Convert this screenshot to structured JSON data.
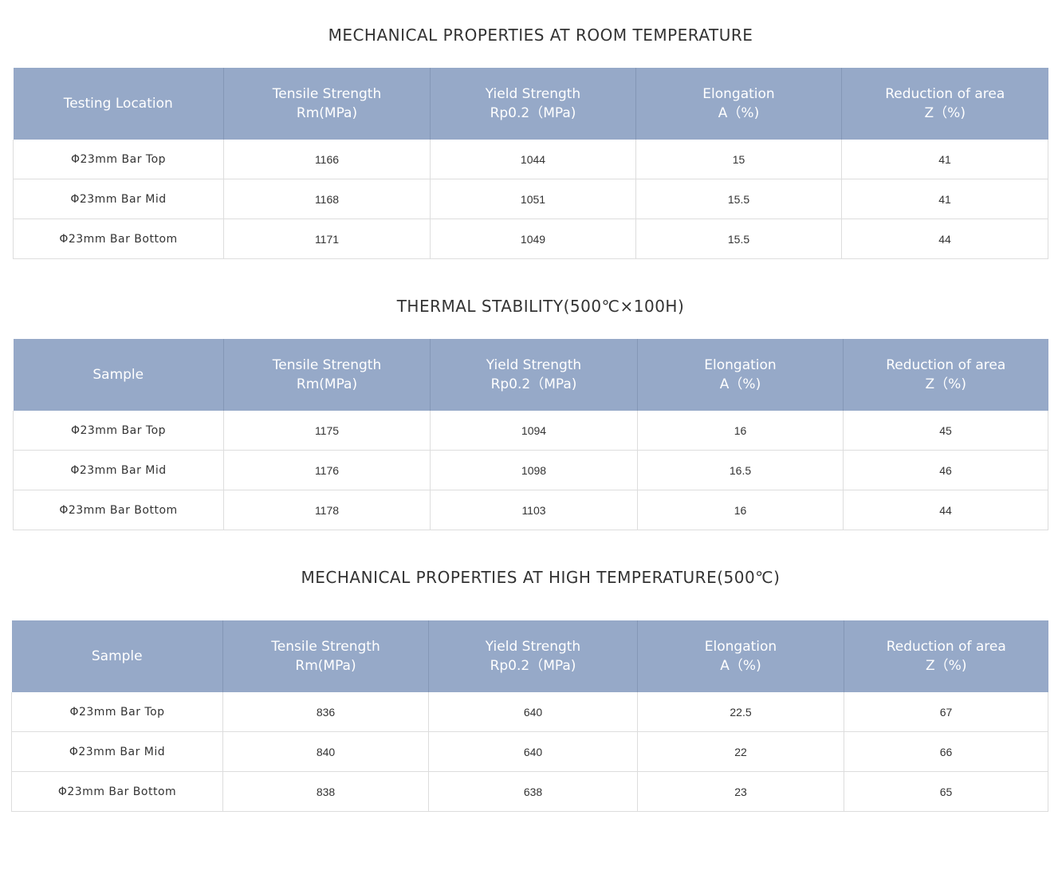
{
  "tables": [
    {
      "title": "MECHANICAL PROPERTIES AT ROOM TEMPERATURE",
      "headers": [
        [
          "Testing Location",
          ""
        ],
        [
          "Tensile Strength",
          "Rm(MPa)"
        ],
        [
          "Yield Strength",
          "Rp0.2（MPa)"
        ],
        [
          "Elongation",
          "A（%)"
        ],
        [
          "Reduction of area",
          "Z（%)"
        ]
      ],
      "rows": [
        [
          "Φ23mm Bar Top",
          "1166",
          "1044",
          "15",
          "41"
        ],
        [
          "Φ23mm Bar Mid",
          "1168",
          "1051",
          "15.5",
          "41"
        ],
        [
          "Φ23mm Bar Bottom",
          "1171",
          "1049",
          "15.5",
          "44"
        ]
      ]
    },
    {
      "title": "THERMAL STABILITY(500℃×100H)",
      "headers": [
        [
          "Sample",
          ""
        ],
        [
          "Tensile Strength",
          "Rm(MPa)"
        ],
        [
          "Yield Strength",
          "Rp0.2（MPa)"
        ],
        [
          "Elongation",
          "A（%)"
        ],
        [
          "Reduction of area",
          "Z（%)"
        ]
      ],
      "rows": [
        [
          "Φ23mm Bar Top",
          "1175",
          "1094",
          "16",
          "45"
        ],
        [
          "Φ23mm Bar Mid",
          "1176",
          "1098",
          "16.5",
          "46"
        ],
        [
          "Φ23mm Bar Bottom",
          "1178",
          "1103",
          "16",
          "44"
        ]
      ]
    },
    {
      "title": "MECHANICAL PROPERTIES AT HIGH TEMPERATURE(500℃)",
      "headers": [
        [
          "Sample",
          ""
        ],
        [
          "Tensile Strength",
          "Rm(MPa)"
        ],
        [
          "Yield Strength",
          "Rp0.2（MPa)"
        ],
        [
          "Elongation",
          "A（%)"
        ],
        [
          "Reduction of area",
          "Z（%)"
        ]
      ],
      "rows": [
        [
          "Φ23mm Bar Top",
          "836",
          "640",
          "22.5",
          "67"
        ],
        [
          "Φ23mm Bar Mid",
          "840",
          "640",
          "22",
          "66"
        ],
        [
          "Φ23mm Bar Bottom",
          "838",
          "638",
          "23",
          "65"
        ]
      ]
    }
  ]
}
